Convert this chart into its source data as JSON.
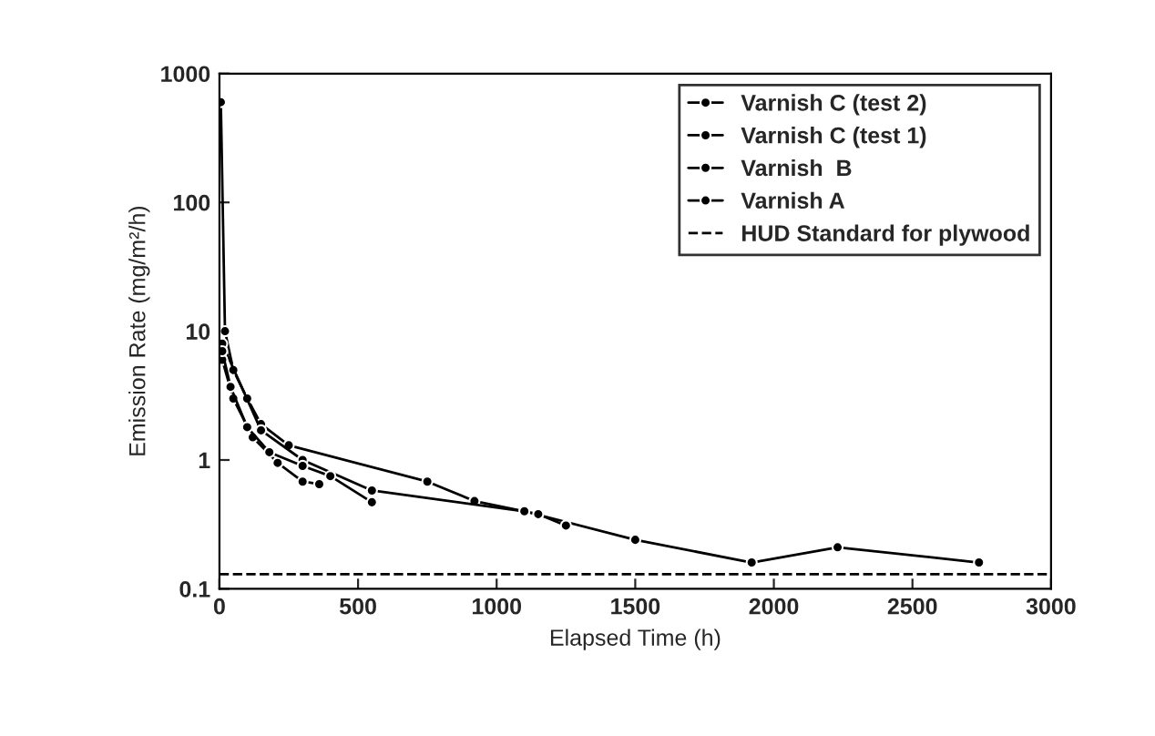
{
  "chart_data": {
    "type": "line",
    "xlabel": "Elapsed Time (h)",
    "ylabel": "Emission Rate (mg/m²/h)",
    "log": "y",
    "xlim": [
      0,
      3000
    ],
    "xticks": [
      0,
      500,
      1000,
      1500,
      2000,
      2500,
      3000
    ],
    "ylim": [
      0.1,
      1000
    ],
    "yticks": [
      0.1,
      1,
      10,
      100,
      1000
    ],
    "grid": false,
    "legend": "top right",
    "marker": "circle",
    "line_style": "solid",
    "series": [
      {
        "name": "Varnish C (test 2)",
        "color": "#000000",
        "x": [
          5,
          20,
          50,
          100,
          150,
          250,
          750,
          920,
          1100,
          1500,
          1920,
          2230,
          2740
        ],
        "values": [
          600,
          10,
          5,
          3,
          1.9,
          1.3,
          0.68,
          0.48,
          0.4,
          0.24,
          0.16,
          0.21,
          0.16
        ]
      },
      {
        "name": "Varnish C (test 1)",
        "color": "#000000",
        "x": [
          10,
          50,
          150,
          300,
          550,
          1100,
          1150,
          1250
        ],
        "values": [
          8,
          null,
          1.7,
          1.0,
          0.58,
          0.4,
          0.38,
          0.31
        ]
      },
      {
        "name": "Varnish  B",
        "color": "#000000",
        "x": [
          10,
          50,
          120,
          210,
          300,
          360
        ],
        "values": [
          6,
          3,
          1.5,
          0.95,
          0.68,
          0.65
        ]
      },
      {
        "name": "Varnish A",
        "color": "#000000",
        "x": [
          10,
          40,
          100,
          180,
          300,
          400,
          550
        ],
        "values": [
          7,
          3.7,
          1.8,
          1.15,
          0.9,
          0.75,
          0.47
        ]
      }
    ],
    "ref_lines": [
      {
        "axis": "y",
        "value": 0.13,
        "label": "HUD Standard for plywood",
        "color": "#000000",
        "line_style": "dashed"
      }
    ]
  }
}
